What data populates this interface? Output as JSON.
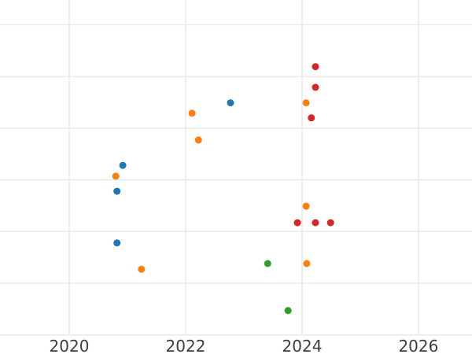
{
  "chart_data": {
    "type": "scatter",
    "title": "",
    "xlabel": "",
    "ylabel": "",
    "x_tick_labels": [
      "2020",
      "2022",
      "2024",
      "2026"
    ],
    "x_tick_values": [
      2020,
      2022,
      2024,
      2026
    ],
    "x_range": [
      2018.81,
      2026.92
    ],
    "y_range": [
      0,
      6.48
    ],
    "y_gridline_values": [
      0,
      1,
      2,
      3,
      4,
      5,
      6
    ],
    "y_tick_labels": [],
    "grid": true,
    "legend_position": "none",
    "marker": {
      "shape": "circle",
      "radius_px": 4.5
    },
    "colors": {
      "background": "#ffffff",
      "grid": "#e9e9e9",
      "tick_text": "#3d3d3d"
    },
    "series": [
      {
        "name": "series-blue",
        "color": "#1f77b4",
        "points": [
          {
            "x": 2022.77,
            "y": 4.49
          },
          {
            "x": 2020.92,
            "y": 3.28
          },
          {
            "x": 2020.82,
            "y": 2.78
          },
          {
            "x": 2020.82,
            "y": 1.78
          }
        ]
      },
      {
        "name": "series-orange",
        "color": "#ff7f0e",
        "points": [
          {
            "x": 2022.11,
            "y": 4.29
          },
          {
            "x": 2022.22,
            "y": 3.77
          },
          {
            "x": 2020.8,
            "y": 3.07
          },
          {
            "x": 2024.07,
            "y": 4.49
          },
          {
            "x": 2024.07,
            "y": 2.49
          },
          {
            "x": 2024.08,
            "y": 1.38
          },
          {
            "x": 2021.24,
            "y": 1.27
          }
        ]
      },
      {
        "name": "series-red",
        "color": "#d62728",
        "points": [
          {
            "x": 2024.23,
            "y": 5.19
          },
          {
            "x": 2024.23,
            "y": 4.79
          },
          {
            "x": 2024.16,
            "y": 4.2
          },
          {
            "x": 2023.92,
            "y": 2.17
          },
          {
            "x": 2024.23,
            "y": 2.17
          },
          {
            "x": 2024.49,
            "y": 2.17
          }
        ]
      },
      {
        "name": "series-green",
        "color": "#2ca02c",
        "points": [
          {
            "x": 2023.41,
            "y": 1.38
          },
          {
            "x": 2023.76,
            "y": 0.47
          }
        ]
      }
    ]
  }
}
